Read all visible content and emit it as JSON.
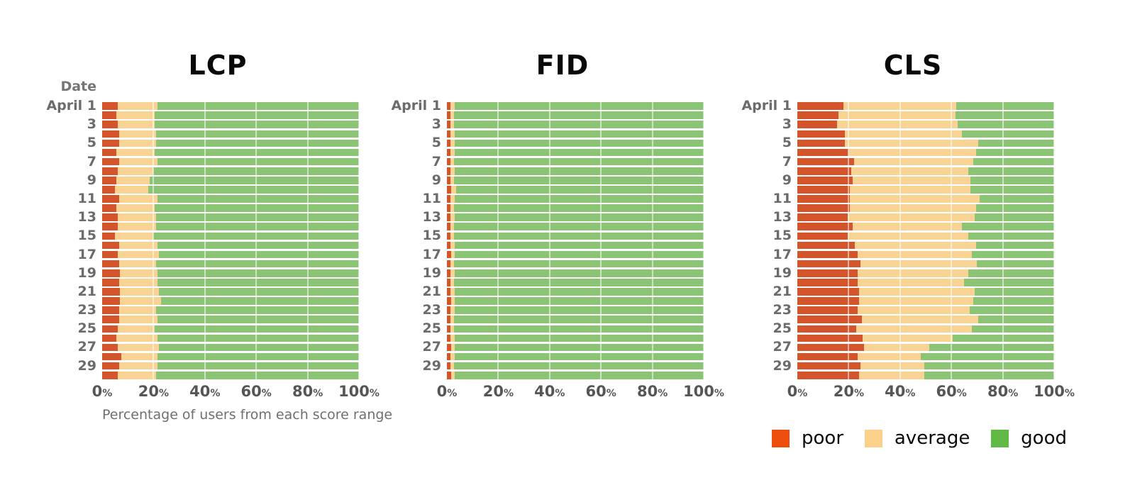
{
  "colors": {
    "bar_poor": "#d4542c",
    "bar_average": "#f8d393",
    "bar_good": "#8ac474",
    "legend_poor": "#f04e0e",
    "legend_average": "#fbd18a",
    "legend_good": "#5fb944",
    "gridline": "rgba(255,255,255,0.55)",
    "title_text": "#090909",
    "axis_text": "#565656",
    "date_text": "#6b6b6b"
  },
  "legend": {
    "items": [
      {
        "label": "poor",
        "color": "#f04e0e"
      },
      {
        "label": "average",
        "color": "#fbd18a"
      },
      {
        "label": "good",
        "color": "#5fb944"
      }
    ]
  },
  "chart_data": [
    {
      "type": "bar",
      "stacked": true,
      "orientation": "horizontal",
      "title": "LCP",
      "ylabel": "Date",
      "xlabel": "Percentage of users from each score range",
      "xlim": [
        0,
        100
      ],
      "x_ticks": [
        "0%",
        "20%",
        "40%",
        "60%",
        "80%",
        "100%"
      ],
      "grid": true,
      "row_labels": [
        "April 1",
        "",
        "3",
        "",
        "5",
        "",
        "7",
        "",
        "9",
        "",
        "11",
        "",
        "13",
        "",
        "15",
        "",
        "17",
        "",
        "19",
        "",
        "21",
        "",
        "23",
        "",
        "25",
        "",
        "27",
        "",
        "29",
        ""
      ],
      "series": [
        {
          "name": "poor",
          "values": [
            6,
            5.5,
            6,
            6.5,
            6.5,
            5.5,
            6.5,
            6,
            5.5,
            5,
            6.5,
            5.5,
            6,
            6,
            5,
            6.5,
            6,
            6.5,
            7,
            6.5,
            7,
            7,
            6.5,
            6.5,
            6,
            5.5,
            6,
            7.5,
            6.5,
            6
          ]
        },
        {
          "name": "average",
          "values": [
            15.5,
            15,
            14.5,
            14.5,
            14.5,
            15,
            15,
            14,
            13,
            13,
            15,
            15,
            15,
            15,
            15,
            15,
            16,
            14.5,
            14.5,
            15,
            15,
            16,
            14.5,
            15,
            14.5,
            16,
            16,
            14,
            15,
            15
          ]
        },
        {
          "name": "good",
          "values": [
            78.5,
            79.5,
            79.5,
            79,
            79,
            79.5,
            78.5,
            80,
            81.5,
            82,
            78.5,
            79.5,
            79,
            79,
            80,
            78.5,
            78,
            79,
            78.5,
            78.5,
            78,
            77,
            79,
            78.5,
            79.5,
            78.5,
            78,
            78.5,
            78.5,
            79
          ]
        }
      ]
    },
    {
      "type": "bar",
      "stacked": true,
      "orientation": "horizontal",
      "title": "FID",
      "xlim": [
        0,
        100
      ],
      "x_ticks": [
        "0%",
        "20%",
        "40%",
        "60%",
        "80%",
        "100%"
      ],
      "grid": true,
      "row_labels": [
        "April 1",
        "",
        "3",
        "",
        "5",
        "",
        "7",
        "",
        "9",
        "",
        "11",
        "",
        "13",
        "",
        "15",
        "",
        "17",
        "",
        "19",
        "",
        "21",
        "",
        "23",
        "",
        "25",
        "",
        "27",
        "",
        "29",
        ""
      ],
      "series": [
        {
          "name": "poor",
          "values": [
            1.5,
            1.4,
            1.5,
            1.5,
            1.4,
            1.5,
            1.4,
            1.5,
            1.4,
            1.6,
            1.5,
            1.4,
            1.5,
            1.5,
            1.4,
            1.5,
            1.6,
            1.5,
            1.5,
            1.4,
            1.5,
            1.6,
            1.5,
            1.5,
            1.4,
            1.5,
            1.6,
            1.5,
            1.5,
            1.6
          ]
        },
        {
          "name": "average",
          "values": [
            1.5,
            1.4,
            1.3,
            1.5,
            1.6,
            1.5,
            1.4,
            1.5,
            1.3,
            2,
            1.5,
            1.4,
            1.5,
            1.4,
            1.5,
            1.5,
            1.5,
            1.4,
            1.5,
            1.5,
            1.5,
            1.4,
            1.5,
            1.4,
            1.5,
            1.6,
            1.5,
            1.5,
            1.4,
            1.5
          ]
        },
        {
          "name": "good",
          "values": [
            97,
            97.2,
            97.2,
            97,
            97,
            97,
            97.2,
            97,
            97.3,
            96.4,
            97,
            97.2,
            97,
            97.1,
            97.1,
            97,
            96.9,
            97.1,
            97,
            97.1,
            97,
            97,
            97,
            97.1,
            97.1,
            96.9,
            96.9,
            97,
            97.1,
            96.9
          ]
        }
      ]
    },
    {
      "type": "bar",
      "stacked": true,
      "orientation": "horizontal",
      "title": "CLS",
      "xlim": [
        0,
        100
      ],
      "x_ticks": [
        "0%",
        "20%",
        "40%",
        "60%",
        "80%",
        "100%"
      ],
      "grid": true,
      "row_labels": [
        "April 1",
        "",
        "3",
        "",
        "5",
        "",
        "7",
        "",
        "9",
        "",
        "11",
        "",
        "13",
        "",
        "15",
        "",
        "17",
        "",
        "19",
        "",
        "21",
        "",
        "23",
        "",
        "25",
        "",
        "27",
        "",
        "29",
        ""
      ],
      "series": [
        {
          "name": "poor",
          "values": [
            18,
            16,
            15.5,
            18.5,
            18.5,
            20,
            22,
            21,
            21.5,
            20.5,
            20.5,
            20.5,
            19.5,
            21.5,
            19.5,
            22.5,
            23.5,
            24.5,
            23.5,
            23.5,
            24,
            24,
            23.5,
            25,
            23,
            25.5,
            26,
            23.5,
            24.5,
            24
          ]
        },
        {
          "name": "average",
          "values": [
            44,
            45.5,
            47,
            45.5,
            52,
            49.5,
            46.5,
            45.5,
            46,
            47,
            50.5,
            49,
            49.5,
            42.5,
            47,
            47,
            44.5,
            45.5,
            43,
            41.5,
            45,
            44.5,
            43.5,
            45.5,
            45,
            35,
            25.5,
            24.5,
            25,
            25.5
          ]
        },
        {
          "name": "good",
          "values": [
            38,
            38.5,
            37.5,
            36,
            29.5,
            30.5,
            31.5,
            33.5,
            32.5,
            32.5,
            29,
            30.5,
            31,
            36,
            33.5,
            30.5,
            32,
            30,
            33.5,
            35,
            31,
            31.5,
            33,
            29.5,
            32,
            39.5,
            48.5,
            52,
            50.5,
            50.5
          ]
        }
      ]
    }
  ]
}
